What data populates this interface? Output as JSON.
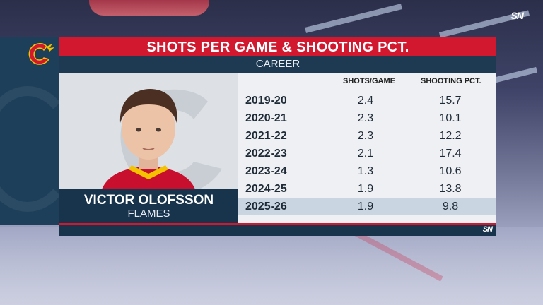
{
  "network": {
    "logo_text": "SN"
  },
  "team": {
    "name": "Flames",
    "logo_icon": "flaming-c-logo",
    "primary_color": "#d2182f",
    "navy": "#17344c"
  },
  "graphic": {
    "title": "SHOTS PER GAME & SHOOTING PCT.",
    "subtitle": "CAREER"
  },
  "player": {
    "name": "VICTOR OLOFSSON",
    "team_label": "FLAMES"
  },
  "table": {
    "headers": {
      "season": "",
      "shots_per_game": "SHOTS/GAME",
      "shooting_pct": "SHOOTING PCT."
    },
    "rows": [
      {
        "season": "2019-20",
        "spg": "2.4",
        "pct": "15.7"
      },
      {
        "season": "2020-21",
        "spg": "2.3",
        "pct": "10.1"
      },
      {
        "season": "2021-22",
        "spg": "2.3",
        "pct": "12.2"
      },
      {
        "season": "2022-23",
        "spg": "2.1",
        "pct": "17.4"
      },
      {
        "season": "2023-24",
        "spg": "1.3",
        "pct": "10.6"
      },
      {
        "season": "2024-25",
        "spg": "1.9",
        "pct": "13.8"
      },
      {
        "season": "2025-26",
        "spg": "1.9",
        "pct": "9.8"
      }
    ],
    "highlighted_row": 6
  }
}
